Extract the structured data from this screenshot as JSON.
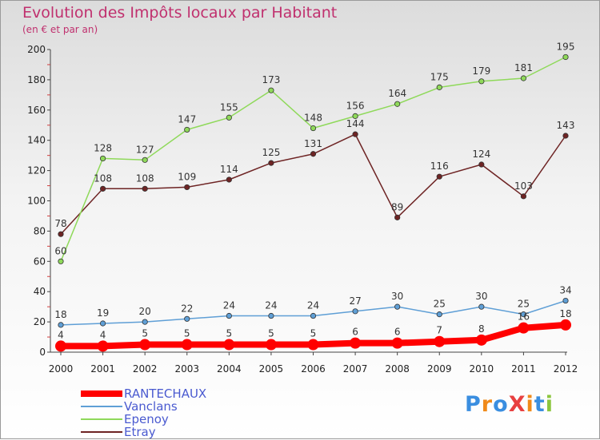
{
  "title": "Evolution des Impôts locaux par Habitant",
  "subtitle": "(en € et par an)",
  "logo": {
    "text": "ProXiti",
    "colors": [
      "#3a8ee0",
      "#f08a1a",
      "#3a8ee0",
      "#e84040",
      "#f08a1a",
      "#3a8ee0",
      "#8cc63e"
    ]
  },
  "chart_data": {
    "type": "line",
    "x": [
      "2000",
      "2001",
      "2002",
      "2003",
      "2004",
      "2005",
      "2006",
      "2007",
      "2008",
      "2009",
      "2010",
      "2011",
      "2012"
    ],
    "ylim": [
      0,
      200
    ],
    "yticks": [
      0,
      20,
      40,
      60,
      80,
      100,
      120,
      140,
      160,
      180,
      200
    ],
    "grid": false,
    "legend_position": "bottom-left",
    "series": [
      {
        "name": "RANTECHAUX",
        "color": "#ff0000",
        "emphasis": true,
        "values": [
          4,
          4,
          5,
          5,
          5,
          5,
          5,
          6,
          6,
          7,
          8,
          16,
          18
        ],
        "labels": [
          "4",
          "4",
          "5",
          "5",
          "5",
          "5",
          "5",
          "6",
          "6",
          "7",
          "8",
          "16",
          "18"
        ]
      },
      {
        "name": "Vanclans",
        "color": "#5f9fd6",
        "values": [
          18,
          19,
          20,
          22,
          24,
          24,
          24,
          27,
          30,
          25,
          30,
          25,
          34
        ],
        "labels": [
          "18",
          "19",
          "20",
          "22",
          "24",
          "24",
          "24",
          "27",
          "30",
          "25",
          "30",
          "25",
          "34"
        ]
      },
      {
        "name": "Epenoy",
        "color": "#8fd95a",
        "values": [
          60,
          128,
          127,
          147,
          155,
          173,
          148,
          156,
          164,
          175,
          179,
          181,
          195
        ],
        "labels": [
          "60",
          "128",
          "127",
          "147",
          "155",
          "173",
          "148",
          "156",
          "164",
          "175",
          "179",
          "181",
          "195"
        ]
      },
      {
        "name": "Etray",
        "color": "#6e2424",
        "values": [
          78,
          108,
          108,
          109,
          114,
          125,
          131,
          144,
          89,
          116,
          124,
          103,
          143
        ],
        "labels": [
          "78",
          "108",
          "108",
          "109",
          "114",
          "125",
          "131",
          "144",
          "89",
          "116",
          "124",
          "103",
          "143"
        ]
      }
    ]
  }
}
